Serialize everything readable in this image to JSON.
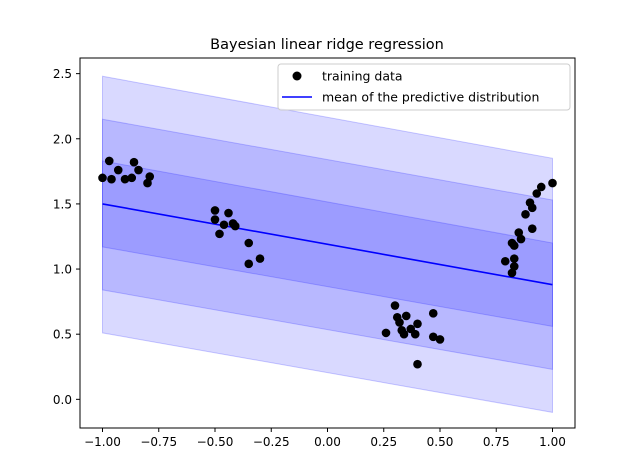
{
  "chart_data": {
    "type": "scatter",
    "title": "Bayesian linear ridge regression",
    "xlabel": "",
    "ylabel": "",
    "xlim": [
      -1.1,
      1.1
    ],
    "ylim": [
      -0.22,
      2.62
    ],
    "x_ticks": [
      -1.0,
      -0.75,
      -0.5,
      -0.25,
      0.0,
      0.25,
      0.5,
      0.75,
      1.0
    ],
    "x_tick_labels": [
      "−1.00",
      "−0.75",
      "−0.50",
      "−0.25",
      "0.00",
      "0.25",
      "0.50",
      "0.75",
      "1.00"
    ],
    "y_ticks": [
      0.0,
      0.5,
      1.0,
      1.5,
      2.0,
      2.5
    ],
    "y_tick_labels": [
      "0.0",
      "0.5",
      "1.0",
      "1.5",
      "2.0",
      "2.5"
    ],
    "grid": false,
    "legend_position": "upper-right",
    "series": [
      {
        "name": "training data",
        "kind": "scatter",
        "color": "#000000",
        "points": [
          [
            -1.0,
            1.7
          ],
          [
            -0.97,
            1.83
          ],
          [
            -0.96,
            1.69
          ],
          [
            -0.93,
            1.76
          ],
          [
            -0.9,
            1.69
          ],
          [
            -0.87,
            1.7
          ],
          [
            -0.86,
            1.82
          ],
          [
            -0.84,
            1.76
          ],
          [
            -0.8,
            1.66
          ],
          [
            -0.79,
            1.71
          ],
          [
            -0.5,
            1.45
          ],
          [
            -0.5,
            1.38
          ],
          [
            -0.48,
            1.27
          ],
          [
            -0.46,
            1.34
          ],
          [
            -0.44,
            1.43
          ],
          [
            -0.42,
            1.35
          ],
          [
            -0.41,
            1.33
          ],
          [
            -0.35,
            1.2
          ],
          [
            -0.35,
            1.04
          ],
          [
            -0.3,
            1.08
          ],
          [
            0.26,
            0.51
          ],
          [
            0.3,
            0.72
          ],
          [
            0.31,
            0.63
          ],
          [
            0.32,
            0.59
          ],
          [
            0.33,
            0.53
          ],
          [
            0.34,
            0.5
          ],
          [
            0.35,
            0.64
          ],
          [
            0.37,
            0.54
          ],
          [
            0.39,
            0.5
          ],
          [
            0.4,
            0.58
          ],
          [
            0.4,
            0.27
          ],
          [
            0.47,
            0.66
          ],
          [
            0.47,
            0.48
          ],
          [
            0.5,
            0.46
          ],
          [
            0.79,
            1.06
          ],
          [
            0.82,
            0.97
          ],
          [
            0.82,
            1.2
          ],
          [
            0.83,
            1.18
          ],
          [
            0.83,
            1.08
          ],
          [
            0.83,
            1.02
          ],
          [
            0.85,
            1.28
          ],
          [
            0.86,
            1.23
          ],
          [
            0.88,
            1.42
          ],
          [
            0.9,
            1.51
          ],
          [
            0.91,
            1.47
          ],
          [
            0.91,
            1.31
          ],
          [
            0.93,
            1.58
          ],
          [
            0.95,
            1.63
          ],
          [
            1.0,
            1.66
          ]
        ]
      },
      {
        "name": "mean of the predictive distribution",
        "kind": "line",
        "color": "#0000ff",
        "x": [
          -1.0,
          1.0
        ],
        "y": [
          1.5,
          0.88
        ]
      }
    ],
    "bands": [
      {
        "x": [
          -1.0,
          1.0
        ],
        "lower": [
          0.51,
          -0.1
        ],
        "upper": [
          2.48,
          1.85
        ],
        "color": "#0000ff",
        "opacity": 0.15
      },
      {
        "x": [
          -1.0,
          1.0
        ],
        "lower": [
          0.84,
          0.23
        ],
        "upper": [
          2.15,
          1.53
        ],
        "color": "#0000ff",
        "opacity": 0.15
      },
      {
        "x": [
          -1.0,
          1.0
        ],
        "lower": [
          1.17,
          0.56
        ],
        "upper": [
          1.83,
          1.2
        ],
        "color": "#0000ff",
        "opacity": 0.15
      }
    ]
  }
}
